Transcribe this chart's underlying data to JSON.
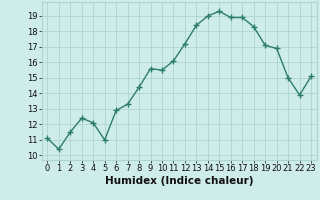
{
  "x": [
    0,
    1,
    2,
    3,
    4,
    5,
    6,
    7,
    8,
    9,
    10,
    11,
    12,
    13,
    14,
    15,
    16,
    17,
    18,
    19,
    20,
    21,
    22,
    23
  ],
  "y": [
    11.1,
    10.4,
    11.5,
    12.4,
    12.1,
    11.0,
    12.9,
    13.3,
    14.4,
    15.6,
    15.5,
    16.1,
    17.2,
    18.4,
    19.0,
    19.3,
    18.9,
    18.9,
    18.3,
    17.1,
    16.9,
    15.0,
    13.9,
    15.1
  ],
  "xlabel": "Humidex (Indice chaleur)",
  "xlim": [
    -0.5,
    23.5
  ],
  "ylim": [
    9.7,
    19.9
  ],
  "yticks": [
    10,
    11,
    12,
    13,
    14,
    15,
    16,
    17,
    18,
    19
  ],
  "xticks": [
    0,
    1,
    2,
    3,
    4,
    5,
    6,
    7,
    8,
    9,
    10,
    11,
    12,
    13,
    14,
    15,
    16,
    17,
    18,
    19,
    20,
    21,
    22,
    23
  ],
  "line_color": "#2d7d6d",
  "marker": "+",
  "marker_size": 4.0,
  "marker_lw": 1.0,
  "line_width": 1.0,
  "bg_color": "#ceecea",
  "grid_color": "#aed4d0",
  "xlabel_fontsize": 7.5,
  "tick_fontsize": 6.0
}
